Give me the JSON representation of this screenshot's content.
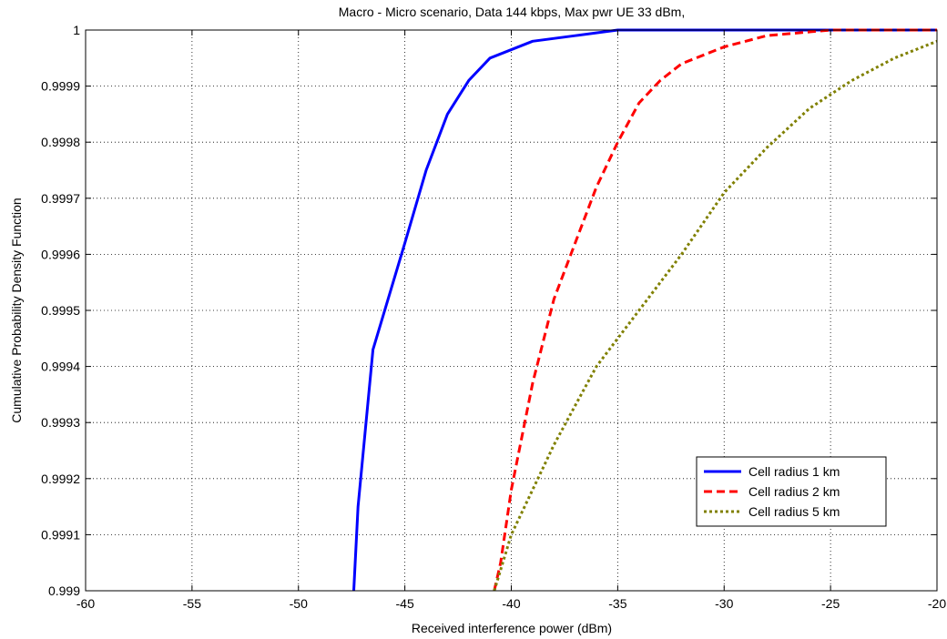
{
  "chart_data": {
    "type": "line",
    "title": "Macro - Micro scenario, Data 144 kbps, Max pwr UE 33 dBm,",
    "xlabel": "Received interference power (dBm)",
    "ylabel": "Cumulative Probability Density Function",
    "xlim": [
      -60,
      -20
    ],
    "ylim": [
      0.999,
      1.0
    ],
    "x_ticks": [
      -60,
      -55,
      -50,
      -45,
      -40,
      -35,
      -30,
      -25,
      -20
    ],
    "x_tick_labels": [
      "-60",
      "-55",
      "-50",
      "-45",
      "-40",
      "-35",
      "-30",
      "-25",
      "-20"
    ],
    "y_ticks": [
      0.999,
      0.9991,
      0.9992,
      0.9993,
      0.9994,
      0.9995,
      0.9996,
      0.9997,
      0.9998,
      0.9999,
      1.0
    ],
    "y_tick_labels": [
      "0.999",
      "0.9991",
      "0.9992",
      "0.9993",
      "0.9994",
      "0.9995",
      "0.9996",
      "0.9997",
      "0.9998",
      "0.9999",
      "1"
    ],
    "grid": true,
    "legend_position": "lower-right",
    "series": [
      {
        "name": "Cell radius 1 km",
        "color": "#0000ff",
        "style": "solid",
        "points": [
          [
            -47.4,
            0.999
          ],
          [
            -47.2,
            0.99915
          ],
          [
            -46.5,
            0.99943
          ],
          [
            -45.0,
            0.99962
          ],
          [
            -44.0,
            0.99975
          ],
          [
            -43.0,
            0.99985
          ],
          [
            -42.0,
            0.99991
          ],
          [
            -41.0,
            0.99995
          ],
          [
            -39.0,
            0.99998
          ],
          [
            -37.0,
            0.99999
          ],
          [
            -35.0,
            1.0
          ],
          [
            -20.0,
            1.0
          ]
        ]
      },
      {
        "name": "Cell radius 2 km",
        "color": "#ff0000",
        "style": "dashed",
        "points": [
          [
            -40.8,
            0.999
          ],
          [
            -40.5,
            0.99905
          ],
          [
            -40.0,
            0.99918
          ],
          [
            -39.0,
            0.99937
          ],
          [
            -38.0,
            0.99952
          ],
          [
            -37.0,
            0.99962
          ],
          [
            -36.0,
            0.99972
          ],
          [
            -35.0,
            0.9998
          ],
          [
            -34.0,
            0.99987
          ],
          [
            -33.0,
            0.99991
          ],
          [
            -32.0,
            0.99994
          ],
          [
            -30.0,
            0.99997
          ],
          [
            -28.0,
            0.99999
          ],
          [
            -25.0,
            1.0
          ],
          [
            -20.0,
            1.0
          ]
        ]
      },
      {
        "name": "Cell radius 5 km",
        "color": "#808000",
        "style": "dotted",
        "points": [
          [
            -40.8,
            0.999
          ],
          [
            -40.0,
            0.9991
          ],
          [
            -39.0,
            0.99918
          ],
          [
            -38.0,
            0.99926
          ],
          [
            -37.0,
            0.99933
          ],
          [
            -36.0,
            0.9994
          ],
          [
            -34.0,
            0.9995
          ],
          [
            -32.0,
            0.9996
          ],
          [
            -30.0,
            0.99971
          ],
          [
            -28.0,
            0.99979
          ],
          [
            -26.0,
            0.99986
          ],
          [
            -24.0,
            0.99991
          ],
          [
            -22.0,
            0.99995
          ],
          [
            -20.0,
            0.99998
          ]
        ]
      }
    ]
  }
}
